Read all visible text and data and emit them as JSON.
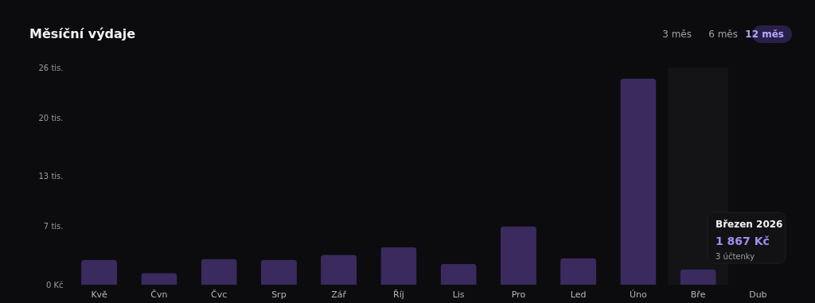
{
  "chart_data": {
    "type": "bar",
    "title": "Měsíční výdaje",
    "categories": [
      "Kvě",
      "Čvn",
      "Čvc",
      "Srp",
      "Zář",
      "Říj",
      "Lis",
      "Pro",
      "Led",
      "Úno",
      "Bře",
      "Dub"
    ],
    "values": [
      3.0,
      1.4,
      3.1,
      3.0,
      3.6,
      4.5,
      2.5,
      7.0,
      3.2,
      24.7,
      1.867,
      null
    ],
    "color": "#3a2a5e",
    "ylim": [
      0,
      26
    ],
    "yticks": [
      {
        "value": 0,
        "label": "0 Kč"
      },
      {
        "value": 7,
        "label": "7 tis."
      },
      {
        "value": 13,
        "label": "13 tis."
      },
      {
        "value": 20,
        "label": "20 tis."
      },
      {
        "value": 26,
        "label": "26 tis."
      }
    ],
    "grid": false,
    "bands": [
      {
        "axis": "x",
        "from": "Bře",
        "to": "Bře",
        "color": "#141416"
      }
    ],
    "annotations": [
      "3 měs",
      "6 měs",
      "12 měs",
      "Březen 2026",
      "1 867 Kč",
      "3 účtenky"
    ]
  }
}
